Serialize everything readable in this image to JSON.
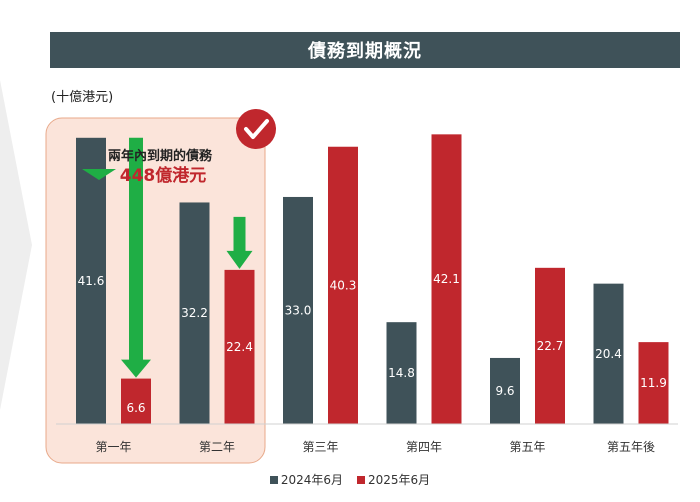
{
  "header": {
    "title": "債務到期概況"
  },
  "unit_label": "(十億港元)",
  "highlight": {
    "label": "兩年內到期的債務",
    "amount": "448億港元"
  },
  "colors": {
    "series_2024": "#3f5259",
    "series_2025": "#c0272d",
    "arrow": "#1fae45"
  },
  "chart_data": {
    "type": "bar",
    "categories": [
      "第一年",
      "第二年",
      "第三年",
      "第四年",
      "第五年",
      "第五年後"
    ],
    "series": [
      {
        "name": "2024年6月",
        "values": [
          41.6,
          32.2,
          33.0,
          14.8,
          9.6,
          20.4
        ]
      },
      {
        "name": "2025年6月",
        "values": [
          6.6,
          22.4,
          40.3,
          42.1,
          22.7,
          11.9
        ]
      }
    ],
    "labels": [
      [
        "41.6",
        "32.2",
        "33.0",
        "14.8",
        "9.6",
        "20.4"
      ],
      [
        "6.6",
        "22.4",
        "40.3",
        "42.1",
        "22.7",
        "11.9"
      ]
    ],
    "ylim": [
      0,
      50
    ],
    "title": "債務到期概況",
    "legend": "bottom"
  }
}
